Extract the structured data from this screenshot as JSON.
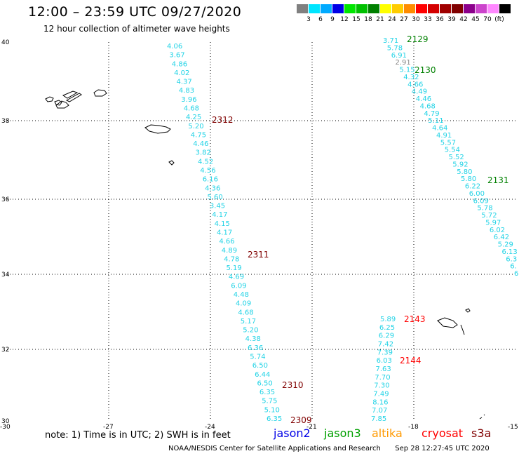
{
  "title": "12:00 – 23:59 UTC 09/27/2020",
  "subtitle": "12 hour collection of altimeter wave heights",
  "colorbar": {
    "colors": [
      "#808080",
      "#00e5ff",
      "#00aaff",
      "#0000e6",
      "#00e600",
      "#00c000",
      "#008000",
      "#ffff00",
      "#ffcc00",
      "#ff8c00",
      "#ff0000",
      "#d40000",
      "#a00000",
      "#800000",
      "#8b008b",
      "#cc44cc",
      "#ff88ff",
      "#000000"
    ],
    "labels": [
      "3",
      "6",
      "9",
      "12",
      "15",
      "18",
      "21",
      "24",
      "27",
      "30",
      "33",
      "36",
      "39",
      "42",
      "45",
      "70",
      "(ft)"
    ]
  },
  "lat_labels": [
    "40",
    "38",
    "36",
    "34",
    "32",
    "30"
  ],
  "lon_labels": [
    "-30",
    "-27",
    "-24",
    "-21",
    "-18",
    "-15"
  ],
  "track_a": [
    "4.06",
    "3.67",
    "4.86",
    "4.02",
    "4.37",
    "4.83",
    "3.96",
    "4.68",
    "4.25",
    "5.20",
    "4.75",
    "4.46",
    "3.82",
    "4.52",
    "4.56",
    "6.16",
    "4.36",
    "5.60",
    "3.45",
    "4.17",
    "4.15",
    "4.17",
    "4.66",
    "4.89",
    "4.78",
    "5.19",
    "4.69",
    "6.09",
    "4.48",
    "4.09",
    "4.68",
    "5.17",
    "5.20",
    "4.38",
    "6.36",
    "5.74",
    "6.50",
    "6.44",
    "6.50",
    "6.35",
    "5.75",
    "5.10",
    "6.35"
  ],
  "track_b": [
    "3.71",
    "5.78",
    "6.91",
    "2.91",
    "5.15",
    "4.32",
    "4.66",
    "4.49",
    "4.46",
    "4.68",
    "4.79",
    "5.11",
    "4.64",
    "4.91",
    "5.57",
    "5.54",
    "5.52",
    "5.92",
    "5.80",
    "5.80",
    "6.22",
    "6.00",
    "6.09",
    "5.78",
    "5.72",
    "5.97",
    "6.02",
    "6.42",
    "5.29",
    "6.13",
    "6.3",
    "6.",
    "6"
  ],
  "track_c": [
    "5.89",
    "6.25",
    "6.29",
    "7.42",
    "7.39",
    "6.03",
    "7.63",
    "7.70",
    "7.30",
    "7.49",
    "8.16",
    "7.07",
    "7.85"
  ],
  "pass_labels": [
    {
      "text": "2312",
      "color": "#800000"
    },
    {
      "text": "2311",
      "color": "#800000"
    },
    {
      "text": "2310",
      "color": "#800000"
    },
    {
      "text": "2309",
      "color": "#800000"
    },
    {
      "text": "2129",
      "color": "#008000"
    },
    {
      "text": "2130",
      "color": "#008000"
    },
    {
      "text": "2131",
      "color": "#008000"
    },
    {
      "text": "2143",
      "color": "#ff0000"
    },
    {
      "text": "2144",
      "color": "#ff0000"
    }
  ],
  "note": "note: 1) Time is in UTC; 2) SWH is in feet",
  "legend": [
    {
      "name": "jason2",
      "color": "#0000e6"
    },
    {
      "name": "jason3",
      "color": "#00a000"
    },
    {
      "name": "altika",
      "color": "#ff9900"
    },
    {
      "name": "cryosat",
      "color": "#ff0000"
    },
    {
      "name": "s3a",
      "color": "#800000"
    }
  ],
  "footer_left": "NOAA/NESDIS Center for Satellite Applications and Research",
  "footer_right": "Sep 28 12:27:45 UTC 2020"
}
